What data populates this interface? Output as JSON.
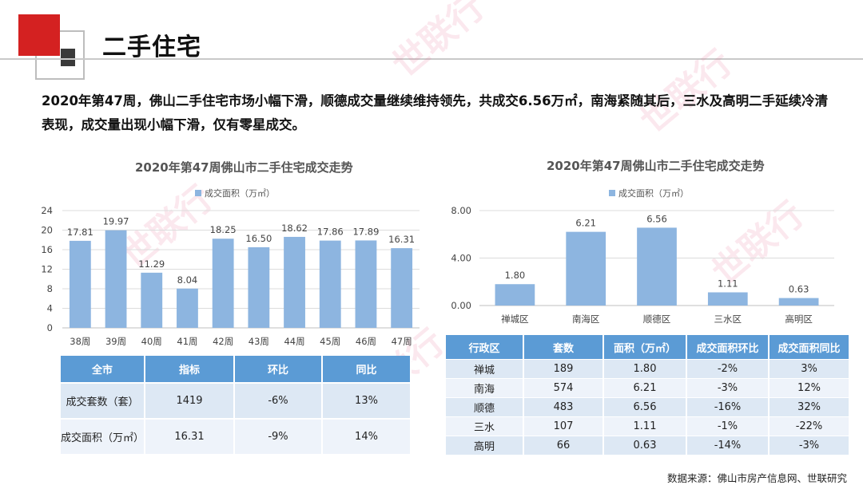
{
  "page_title": "二手住宅",
  "summary": "2020年第47周，佛山二手住宅市场小幅下滑，顺德成交量继续维持领先，共成交6.56万㎡，南海紧随其后，三水及高明二手延续冷清表现，成交量出现小幅下滑，仅有零星成交。",
  "watermark": "世联行",
  "source": "数据来源：佛山市房产信息网、世联研究",
  "colors": {
    "bar": "#8db5e0",
    "header": "#5b9bd5",
    "accent_red": "#d42121"
  },
  "chart_data": [
    {
      "type": "bar",
      "title": "2020年第47周佛山市二手住宅成交走势",
      "legend": [
        "成交面积（万㎡）"
      ],
      "categories": [
        "38周",
        "39周",
        "40周",
        "41周",
        "42周",
        "43周",
        "44周",
        "45周",
        "46周",
        "47周"
      ],
      "series": [
        {
          "name": "成交面积（万㎡）",
          "values": [
            17.81,
            19.97,
            11.29,
            8.04,
            18.25,
            16.5,
            18.62,
            17.86,
            17.89,
            16.31
          ]
        }
      ],
      "value_labels": [
        "17.81",
        "19.97",
        "11.29",
        "8.04",
        "18.25",
        "16.50",
        "18.62",
        "17.86",
        "17.89",
        "16.31"
      ],
      "yticks": [
        "0",
        "4",
        "8",
        "12",
        "16",
        "20",
        "24"
      ],
      "ylim": [
        0,
        24
      ],
      "grid": true
    },
    {
      "type": "bar",
      "title": "2020年第47周佛山市二手住宅成交走势",
      "legend": [
        "成交面积（万㎡）"
      ],
      "categories": [
        "禅城区",
        "南海区",
        "顺德区",
        "三水区",
        "高明区"
      ],
      "series": [
        {
          "name": "成交面积（万㎡）",
          "values": [
            1.8,
            6.21,
            6.56,
            1.11,
            0.63
          ]
        }
      ],
      "value_labels": [
        "1.80",
        "6.21",
        "6.56",
        "1.11",
        "0.63"
      ],
      "yticks": [
        "0.00",
        "4.00",
        "8.00"
      ],
      "ylim": [
        0,
        8
      ],
      "grid": true
    }
  ],
  "summary_table": {
    "headers": [
      "全市",
      "指标",
      "环比",
      "同比"
    ],
    "rows": [
      [
        "成交套数（套）",
        "1419",
        "-6%",
        "13%"
      ],
      [
        "成交面积（万㎡）",
        "16.31",
        "-9%",
        "14%"
      ]
    ]
  },
  "district_table": {
    "headers": [
      "行政区",
      "套数",
      "面积（万㎡）",
      "成交面积环比",
      "成交面积同比"
    ],
    "rows": [
      [
        "禅城",
        "189",
        "1.80",
        "-2%",
        "3%"
      ],
      [
        "南海",
        "574",
        "6.21",
        "-3%",
        "12%"
      ],
      [
        "顺德",
        "483",
        "6.56",
        "-16%",
        "32%"
      ],
      [
        "三水",
        "107",
        "1.11",
        "-1%",
        "-22%"
      ],
      [
        "高明",
        "66",
        "0.63",
        "-14%",
        "-3%"
      ]
    ]
  }
}
